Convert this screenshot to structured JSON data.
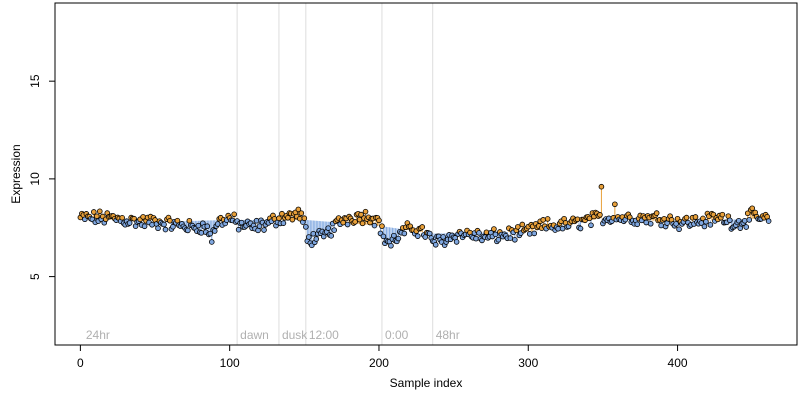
{
  "chart_data": {
    "type": "scatter",
    "title": "",
    "xlabel": "Sample index",
    "ylabel": "Expression",
    "xlim": [
      -17,
      480
    ],
    "ylim": [
      1.5,
      19
    ],
    "x_ticks": [
      0,
      100,
      200,
      300,
      400
    ],
    "y_ticks": [
      5,
      10,
      15
    ],
    "grid": false,
    "legend": "none",
    "phase_markers": [
      {
        "x": 105,
        "label": "dawn"
      },
      {
        "x": 133,
        "label": "dusk"
      },
      {
        "x": 151,
        "label": "12:00"
      },
      {
        "x": 202,
        "label": "0:00"
      },
      {
        "x": 236,
        "label": "48hr"
      }
    ],
    "corner_label": {
      "x": 3,
      "label": "24hr"
    },
    "baseline": [
      {
        "x": 0,
        "y": 8.0
      },
      {
        "x": 50,
        "y": 7.8
      },
      {
        "x": 100,
        "y": 7.9
      },
      {
        "x": 151,
        "y": 7.9
      },
      {
        "x": 200,
        "y": 7.6
      },
      {
        "x": 236,
        "y": 7.2
      },
      {
        "x": 300,
        "y": 7.3
      },
      {
        "x": 350,
        "y": 8.0
      },
      {
        "x": 400,
        "y": 7.8
      },
      {
        "x": 462,
        "y": 8.0
      }
    ],
    "anchor_points": [
      {
        "x": 0,
        "y": 8.0
      },
      {
        "x": 10,
        "y": 8.0
      },
      {
        "x": 20,
        "y": 8.0
      },
      {
        "x": 30,
        "y": 7.9
      },
      {
        "x": 40,
        "y": 7.8
      },
      {
        "x": 50,
        "y": 7.8
      },
      {
        "x": 60,
        "y": 7.7
      },
      {
        "x": 70,
        "y": 7.6
      },
      {
        "x": 75,
        "y": 7.5
      },
      {
        "x": 80,
        "y": 7.6
      },
      {
        "x": 85,
        "y": 7.4
      },
      {
        "x": 88,
        "y": 7.0
      },
      {
        "x": 92,
        "y": 7.8
      },
      {
        "x": 100,
        "y": 8.0
      },
      {
        "x": 105,
        "y": 7.7
      },
      {
        "x": 115,
        "y": 7.5
      },
      {
        "x": 125,
        "y": 7.7
      },
      {
        "x": 133,
        "y": 8.0
      },
      {
        "x": 140,
        "y": 8.1
      },
      {
        "x": 147,
        "y": 8.2
      },
      {
        "x": 151,
        "y": 7.5
      },
      {
        "x": 152,
        "y": 6.8
      },
      {
        "x": 156,
        "y": 7.0
      },
      {
        "x": 162,
        "y": 7.0
      },
      {
        "x": 168,
        "y": 7.4
      },
      {
        "x": 175,
        "y": 7.9
      },
      {
        "x": 185,
        "y": 8.1
      },
      {
        "x": 195,
        "y": 8.1
      },
      {
        "x": 200,
        "y": 7.8
      },
      {
        "x": 203,
        "y": 7.0
      },
      {
        "x": 208,
        "y": 6.7
      },
      {
        "x": 215,
        "y": 7.2
      },
      {
        "x": 222,
        "y": 7.5
      },
      {
        "x": 230,
        "y": 7.3
      },
      {
        "x": 236,
        "y": 6.8
      },
      {
        "x": 240,
        "y": 6.8
      },
      {
        "x": 250,
        "y": 7.1
      },
      {
        "x": 260,
        "y": 7.2
      },
      {
        "x": 270,
        "y": 7.0
      },
      {
        "x": 280,
        "y": 7.1
      },
      {
        "x": 290,
        "y": 7.2
      },
      {
        "x": 300,
        "y": 7.3
      },
      {
        "x": 310,
        "y": 7.6
      },
      {
        "x": 320,
        "y": 7.6
      },
      {
        "x": 330,
        "y": 7.7
      },
      {
        "x": 340,
        "y": 7.9
      },
      {
        "x": 350,
        "y": 8.0
      },
      {
        "x": 360,
        "y": 8.0
      },
      {
        "x": 370,
        "y": 8.0
      },
      {
        "x": 380,
        "y": 8.0
      },
      {
        "x": 390,
        "y": 8.0
      },
      {
        "x": 400,
        "y": 7.8
      },
      {
        "x": 410,
        "y": 7.8
      },
      {
        "x": 420,
        "y": 7.9
      },
      {
        "x": 430,
        "y": 8.0
      },
      {
        "x": 440,
        "y": 7.7
      },
      {
        "x": 450,
        "y": 8.1
      },
      {
        "x": 460,
        "y": 7.9
      }
    ],
    "spike_points": [
      {
        "x": 349,
        "y": 9.6
      },
      {
        "x": 358,
        "y": 8.7
      }
    ],
    "point_count": 462,
    "colors": {
      "above": "#e8a03a",
      "below": "#7fa7e0",
      "point_stroke": "#000000",
      "marker_line": "#dddddd",
      "label": "#b0b0b0"
    }
  }
}
